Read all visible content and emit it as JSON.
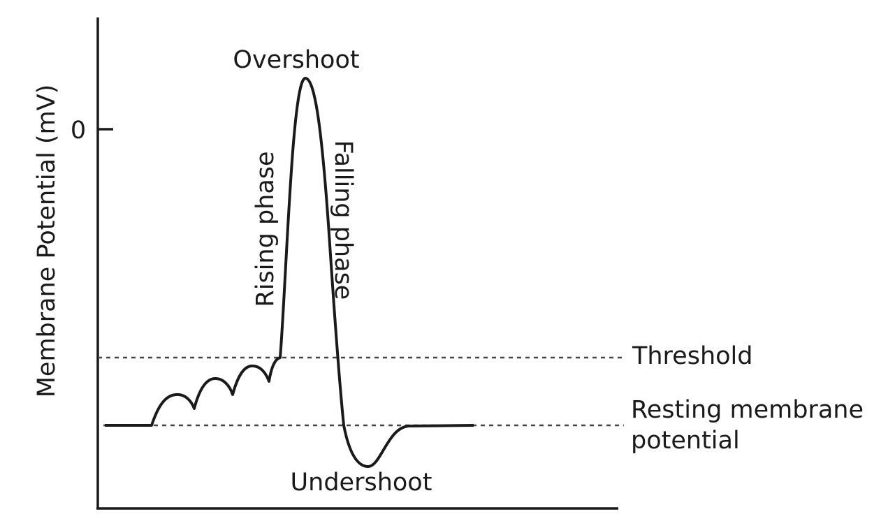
{
  "axis": {
    "y_label": "Membrane Potential (mV)",
    "y_tick": "0"
  },
  "labels": {
    "overshoot": "Overshoot",
    "rising": "Rising phase",
    "falling": "Falling phase",
    "threshold": "Threshold",
    "resting_line1": "Resting membrane",
    "resting_line2": "potential",
    "undershoot": "Undershoot"
  }
}
